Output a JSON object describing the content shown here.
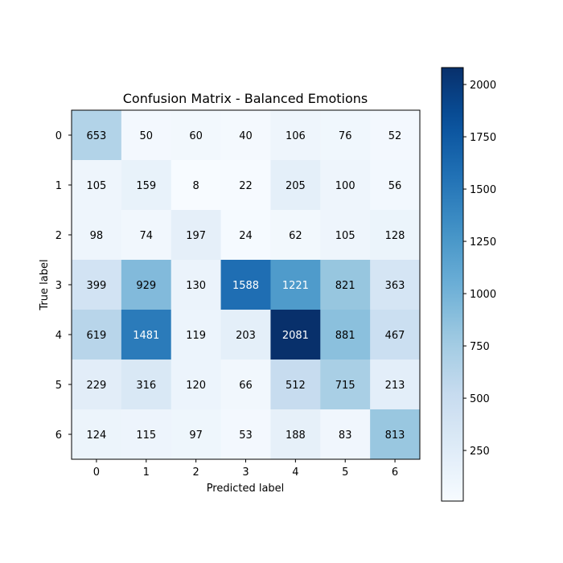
{
  "chart_data": {
    "type": "heatmap",
    "title": "Confusion Matrix - Balanced Emotions",
    "xlabel": "Predicted label",
    "ylabel": "True label",
    "x_categories": [
      "0",
      "1",
      "2",
      "3",
      "4",
      "5",
      "6"
    ],
    "y_categories": [
      "0",
      "1",
      "2",
      "3",
      "4",
      "5",
      "6"
    ],
    "values": [
      [
        653,
        50,
        60,
        40,
        106,
        76,
        52
      ],
      [
        105,
        159,
        8,
        22,
        205,
        100,
        56
      ],
      [
        98,
        74,
        197,
        24,
        62,
        105,
        128
      ],
      [
        399,
        929,
        130,
        1588,
        1221,
        821,
        363
      ],
      [
        619,
        1481,
        119,
        203,
        2081,
        881,
        467
      ],
      [
        229,
        316,
        120,
        66,
        512,
        715,
        213
      ],
      [
        124,
        115,
        97,
        53,
        188,
        83,
        813
      ]
    ],
    "colormap": "Blues",
    "vmin": 8,
    "vmax": 2081,
    "colorbar": {
      "ticks": [
        250,
        500,
        750,
        1000,
        1250,
        1500,
        1750,
        2000
      ],
      "tick_labels": [
        "250",
        "500",
        "750",
        "1000",
        "1250",
        "1500",
        "1750",
        "2000"
      ]
    },
    "grid": false
  }
}
